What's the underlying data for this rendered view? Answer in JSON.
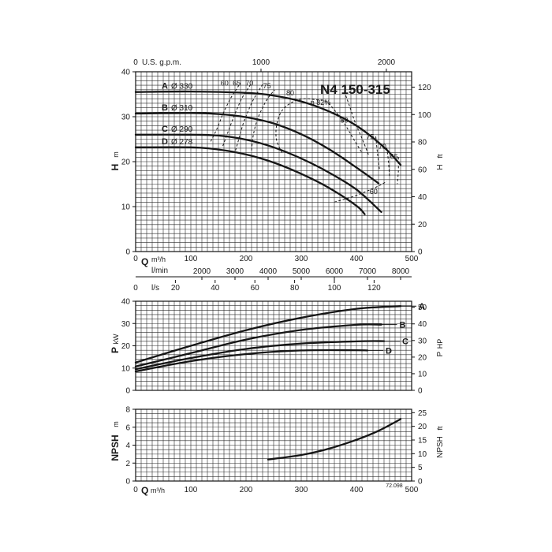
{
  "chart_data": [
    {
      "type": "line",
      "panel": "head",
      "title": "N4 150-315",
      "ylabel": "H",
      "yunit": "m",
      "ylim": [
        0,
        40
      ],
      "yticks": [
        0,
        10,
        20,
        30,
        40
      ],
      "xlim": [
        0,
        500
      ],
      "right_axis": {
        "label": "H",
        "unit": "ft",
        "ticks": [
          0,
          20,
          40,
          60,
          80,
          100,
          120
        ],
        "factor": 3.2808
      },
      "top_axis": {
        "label": "U.S. g.p.m.",
        "zero_label": "0",
        "ticks": [
          1000,
          2000
        ],
        "factor": 4.4029
      },
      "bottom_axes": [
        {
          "label": "Q",
          "unit": "m³/h",
          "zero_label": "0",
          "ticks": [
            100,
            200,
            300,
            400,
            500
          ],
          "factor": 1
        },
        {
          "label": "l/min",
          "ticks": [
            2000,
            3000,
            4000,
            5000,
            6000,
            7000,
            8000
          ],
          "factor": 16.667
        },
        {
          "label": "l/s",
          "zero_label": "0",
          "ticks": [
            20,
            40,
            60,
            80,
            100,
            120
          ],
          "factor": 0.27778
        }
      ],
      "series": [
        {
          "name": "A",
          "diameter": "Ø 330",
          "x": [
            0,
            100,
            200,
            250,
            300,
            350,
            400,
            450,
            480
          ],
          "y": [
            35.5,
            35.6,
            35.3,
            34.7,
            33.4,
            31.2,
            28,
            23.2,
            19.3
          ]
        },
        {
          "name": "B",
          "diameter": "Ø 310",
          "x": [
            0,
            100,
            150,
            200,
            250,
            300,
            350,
            400,
            440
          ],
          "y": [
            30.7,
            30.8,
            30.6,
            29.9,
            28.5,
            26.1,
            22.8,
            18.7,
            15.2
          ]
        },
        {
          "name": "C",
          "diameter": "Ø 290",
          "x": [
            0,
            100,
            150,
            200,
            250,
            300,
            350,
            400,
            445
          ],
          "y": [
            26,
            26,
            25.8,
            24.9,
            23.2,
            20.7,
            17.6,
            13.8,
            8.8
          ]
        },
        {
          "name": "D",
          "diameter": "Ø 278",
          "x": [
            0,
            100,
            150,
            200,
            250,
            300,
            350,
            400,
            415
          ],
          "y": [
            23.2,
            23.2,
            22.7,
            21.6,
            19.8,
            17.3,
            14.2,
            10.2,
            8.3
          ]
        }
      ],
      "efficiency_labels": [
        {
          "text": "60",
          "x": 161,
          "y": 37.5
        },
        {
          "text": "65",
          "x": 183,
          "y": 37.5
        },
        {
          "text": "70",
          "x": 206,
          "y": 37.5
        },
        {
          "text": "75",
          "x": 238,
          "y": 36.8
        },
        {
          "text": "80",
          "x": 280,
          "y": 35.3
        },
        {
          "text": "η 82%",
          "x": 335,
          "y": 33.2
        },
        {
          "text": "80",
          "x": 378,
          "y": 29.2
        },
        {
          "text": "75",
          "x": 425,
          "y": 25.5
        },
        {
          "text": "70",
          "x": 447,
          "y": 23.3
        },
        {
          "text": "65",
          "x": 468,
          "y": 21.1
        },
        {
          "text": "60",
          "x": 431,
          "y": 13.3
        }
      ],
      "efficiency_lines": [
        {
          "x": [
            136,
            148,
            157,
            165,
            173,
            182,
            190
          ],
          "y": [
            24.5,
            27.5,
            30.3,
            32.4,
            34.3,
            36,
            37.6
          ]
        },
        {
          "x": [
            158,
            167,
            176,
            184,
            192,
            202,
            210
          ],
          "y": [
            23.5,
            26.5,
            29.4,
            31.8,
            34,
            36,
            37.5
          ]
        },
        {
          "x": [
            181,
            188,
            195,
            203,
            212,
            222,
            230
          ],
          "y": [
            22.5,
            25.5,
            28.5,
            31,
            33.5,
            35.6,
            37.2
          ]
        },
        {
          "x": [
            210,
            213,
            220,
            230,
            240,
            252
          ],
          "y": [
            22.5,
            25.8,
            29.2,
            32,
            34.2,
            36
          ]
        },
        {
          "x": [
            265,
            255,
            256,
            266,
            285,
            305,
            325,
            345,
            362,
            378,
            395,
            410
          ],
          "y": [
            22,
            25,
            28.5,
            31.5,
            33.3,
            34,
            33.8,
            33.4,
            31.2,
            28.5,
            25,
            22
          ]
        },
        {
          "x": [
            378,
            388,
            398,
            410,
            422
          ],
          "y": [
            35.6,
            32.2,
            28.6,
            25.2,
            21.5
          ]
        },
        {
          "x": [
            435,
            438,
            442
          ],
          "y": [
            25.6,
            22,
            18
          ]
        },
        {
          "x": [
            455,
            458,
            460
          ],
          "y": [
            23.1,
            20,
            16.5
          ]
        },
        {
          "x": [
            476,
            476,
            474
          ],
          "y": [
            21,
            18,
            15
          ]
        },
        {
          "x": [
            360,
            380,
            400,
            420,
            440,
            455
          ],
          "y": [
            11,
            11.7,
            12.5,
            13.5,
            14.6,
            15.6
          ]
        }
      ]
    },
    {
      "type": "line",
      "panel": "power",
      "ylabel": "P",
      "yunit": "kW",
      "ylim": [
        0,
        40
      ],
      "yticks": [
        0,
        10,
        20,
        30,
        40
      ],
      "xlim": [
        0,
        500
      ],
      "right_axis": {
        "label": "P",
        "unit": "HP",
        "ticks": [
          0,
          10,
          20,
          30,
          40,
          50
        ],
        "factor": 1.341
      },
      "series": [
        {
          "name": "A",
          "x": [
            0,
            100,
            200,
            300,
            400,
            480
          ],
          "y": [
            12.5,
            20,
            27,
            32.6,
            36.6,
            37.8
          ]
        },
        {
          "name": "B",
          "x": [
            0,
            100,
            200,
            300,
            400,
            445
          ],
          "y": [
            10.7,
            16.7,
            22.8,
            27.1,
            29.4,
            29.5
          ]
        },
        {
          "name": "C",
          "x": [
            0,
            100,
            200,
            300,
            400,
            450
          ],
          "y": [
            9.5,
            14.5,
            18.6,
            21,
            22,
            22.1
          ]
        },
        {
          "name": "D",
          "x": [
            0,
            100,
            200,
            300,
            400,
            420
          ],
          "y": [
            8.5,
            13.1,
            16.3,
            17.9,
            18,
            17.9
          ]
        }
      ]
    },
    {
      "type": "line",
      "panel": "npsh",
      "ylabel": "NPSH",
      "yunit": "m",
      "ylim": [
        0,
        8
      ],
      "yticks": [
        0,
        2,
        4,
        6,
        8
      ],
      "xlim": [
        0,
        500
      ],
      "xlabel": "Q",
      "xunit": "m³/h",
      "xticks": [
        0,
        100,
        200,
        300,
        400,
        500
      ],
      "right_axis": {
        "label": "NPSH",
        "unit": "ft",
        "ticks": [
          0,
          5,
          10,
          15,
          20,
          25
        ],
        "factor": 3.2808
      },
      "series": [
        {
          "name": "NPSH",
          "x": [
            240,
            300,
            350,
            400,
            440,
            480
          ],
          "y": [
            2.4,
            2.9,
            3.6,
            4.6,
            5.6,
            6.9
          ]
        }
      ],
      "footnote": "72.098"
    }
  ]
}
